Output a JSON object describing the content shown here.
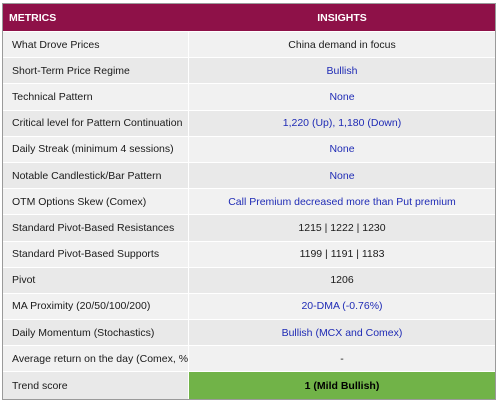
{
  "header": {
    "metrics_label": "METRICS",
    "insights_label": "INSIGHTS"
  },
  "rows": [
    {
      "metric": "What Drove Prices",
      "insight": "China demand in focus",
      "style": "plain"
    },
    {
      "metric": "Short-Term Price Regime",
      "insight": "Bullish",
      "style": "blue"
    },
    {
      "metric": "Technical Pattern",
      "insight": "None",
      "style": "blue"
    },
    {
      "metric": "Critical level for Pattern Continuation",
      "insight": "1,220 (Up), 1,180 (Down)",
      "style": "blue"
    },
    {
      "metric": "Daily Streak (minimum 4 sessions)",
      "insight": "None",
      "style": "blue"
    },
    {
      "metric": "Notable Candlestick/Bar Pattern",
      "insight": "None",
      "style": "blue"
    },
    {
      "metric": "OTM Options Skew (Comex)",
      "insight": "Call Premium decreased more than Put premium",
      "style": "blue"
    },
    {
      "metric": "Standard Pivot-Based Resistances",
      "insight": "1215 | 1222 |  1230",
      "style": "plain"
    },
    {
      "metric": "Standard Pivot-Based Supports",
      "insight": "1199 | 1191 |  1183",
      "style": "plain"
    },
    {
      "metric": "Pivot",
      "insight": "1206",
      "style": "plain"
    },
    {
      "metric": "MA Proximity (20/50/100/200)",
      "insight": "20-DMA (-0.76%)",
      "style": "blue"
    },
    {
      "metric": "Daily Momentum (Stochastics)",
      "insight": "Bullish (MCX and Comex)",
      "style": "blue"
    },
    {
      "metric": "Average return on the day (Comex, %)",
      "insight": "-",
      "style": "plain"
    },
    {
      "metric": "Trend score",
      "insight": "1 (Mild Bullish)",
      "style": "trend"
    }
  ],
  "colors": {
    "header_bg": "#8e1148",
    "insight_blue": "#1f2bb5",
    "trend_green": "#71b348"
  }
}
